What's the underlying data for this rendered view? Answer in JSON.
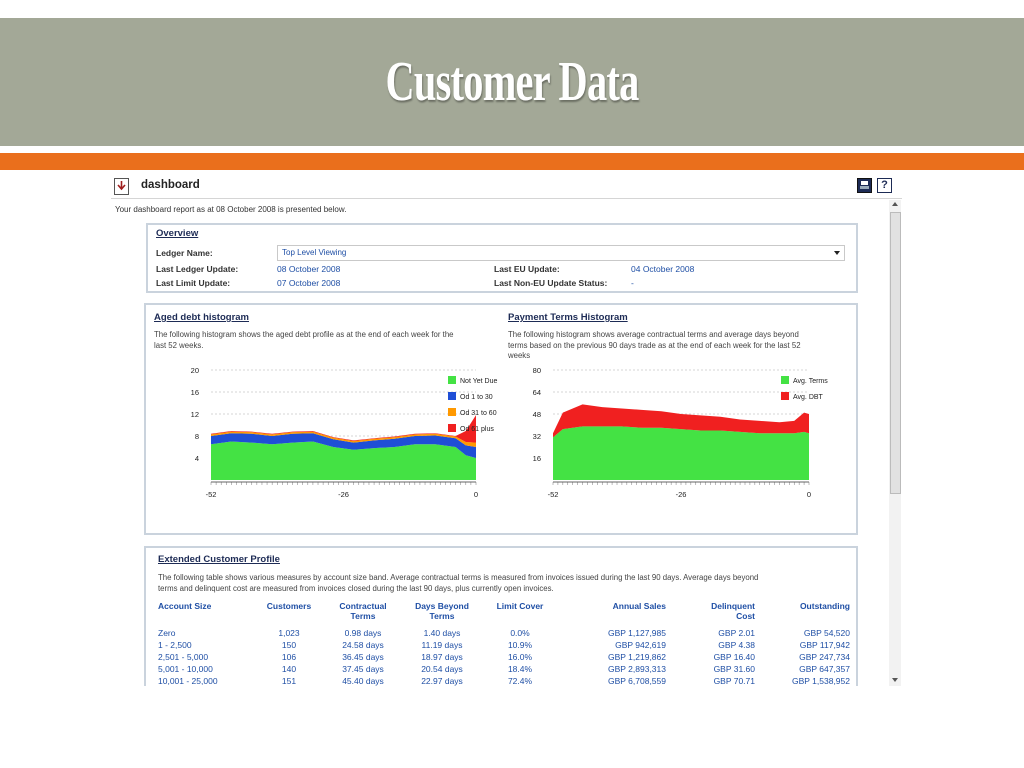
{
  "slide": {
    "title": "Customer Data"
  },
  "app": {
    "title": "dashboard",
    "subtitle": "Your dashboard report as at 08 October 2008 is presented below.",
    "icons": {
      "page": "dashboard-page-icon",
      "print": "print-icon",
      "help": "help-icon"
    }
  },
  "overview": {
    "heading": "Overview",
    "ledger_name_label": "Ledger Name:",
    "ledger_name_value": "Top Level Viewing",
    "last_ledger_update_label": "Last Ledger Update:",
    "last_ledger_update_value": "08 October 2008",
    "last_limit_update_label": "Last Limit Update:",
    "last_limit_update_value": "07 October 2008",
    "last_eu_update_label": "Last EU Update:",
    "last_eu_update_value": "04 October 2008",
    "last_non_eu_update_label": "Last Non-EU Update Status:",
    "last_non_eu_update_value": "-"
  },
  "aged_debt": {
    "heading": "Aged debt histogram",
    "desc1": "The following histogram shows the aged debt profile as at the end of each week for the",
    "desc2": "last 52 weeks."
  },
  "payment_terms": {
    "heading": "Payment Terms Histogram",
    "desc1": "The following histogram shows average contractual terms and average days beyond",
    "desc2": "terms based on the previous 90 days trade as at the end of each week for the last 52",
    "desc3": "weeks"
  },
  "chart_data": [
    {
      "type": "area",
      "stacked": true,
      "x": [
        -52,
        -48,
        -44,
        -40,
        -36,
        -32,
        -28,
        -24,
        -20,
        -16,
        -12,
        -8,
        -4,
        -2,
        0
      ],
      "series": [
        {
          "name": "Not Yet Due",
          "color": "#44e244",
          "values": [
            6.5,
            7.0,
            6.8,
            6.5,
            6.8,
            7.0,
            6.0,
            5.5,
            5.8,
            6.0,
            6.5,
            6.5,
            6.0,
            4.5,
            4.0
          ]
        },
        {
          "name": "Od 1 to 30",
          "color": "#1f4fd6",
          "values": [
            1.5,
            1.5,
            1.6,
            1.5,
            1.6,
            1.5,
            1.4,
            1.3,
            1.4,
            1.5,
            1.5,
            1.6,
            1.6,
            1.8,
            2.0
          ]
        },
        {
          "name": "Od 31 to 60",
          "color": "#ff9900",
          "values": [
            0.3,
            0.3,
            0.3,
            0.3,
            0.3,
            0.3,
            0.3,
            0.3,
            0.3,
            0.3,
            0.3,
            0.3,
            0.3,
            0.6,
            0.8
          ]
        },
        {
          "name": "Od 61 plus",
          "color": "#f02020",
          "values": [
            0.1,
            0.1,
            0.1,
            0.1,
            0.1,
            0.1,
            0.1,
            0.1,
            0.1,
            0.1,
            0.1,
            0.1,
            0.1,
            2.0,
            5.0
          ]
        }
      ],
      "yticks": [
        20,
        16,
        12,
        8,
        4
      ],
      "xticks": [
        -52,
        -26,
        0
      ],
      "ylim": [
        0,
        20
      ],
      "xlim": [
        -52,
        0
      ],
      "grid": true,
      "legend": "right"
    },
    {
      "type": "area",
      "stacked": true,
      "x": [
        -52,
        -50,
        -46,
        -42,
        -38,
        -34,
        -30,
        -26,
        -22,
        -18,
        -14,
        -10,
        -6,
        -3,
        -1,
        0
      ],
      "series": [
        {
          "name": "Avg. Terms",
          "color": "#44e244",
          "values": [
            31,
            37,
            39,
            39,
            39,
            38,
            38,
            37,
            36,
            36,
            35,
            34,
            34,
            34,
            35,
            34
          ]
        },
        {
          "name": "Avg. DBT",
          "color": "#f02020",
          "values": [
            3,
            12,
            16,
            14,
            13,
            13,
            12,
            11,
            11,
            10,
            9,
            9,
            8,
            9,
            14,
            14
          ]
        }
      ],
      "yticks": [
        80,
        64,
        48,
        32,
        16
      ],
      "xticks": [
        -52,
        -26,
        0
      ],
      "ylim": [
        0,
        80
      ],
      "xlim": [
        -52,
        0
      ],
      "grid": true,
      "legend": "right"
    }
  ],
  "ecp": {
    "heading": "Extended Customer Profile",
    "desc1": "The following table shows various measures by account size band. Average contractual terms is measured from invoices issued during the last 90 days. Average days beyond",
    "desc2": "terms and delinquent cost are measured from invoices closed during the last 90 days, plus currently open invoices.",
    "headers": [
      [
        "Account Size",
        ""
      ],
      [
        "Customers",
        ""
      ],
      [
        "Contractual",
        "Terms"
      ],
      [
        "Days Beyond",
        "Terms"
      ],
      [
        "Limit Cover",
        ""
      ],
      [
        "Annual Sales",
        ""
      ],
      [
        "Delinquent",
        "Cost"
      ],
      [
        "Outstanding",
        ""
      ]
    ],
    "rows": [
      [
        "Zero",
        "1,023",
        "0.98 days",
        "1.40 days",
        "0.0%",
        "GBP 1,127,985",
        "GBP 2.01",
        "GBP 54,520"
      ],
      [
        "1 - 2,500",
        "150",
        "24.58 days",
        "11.19 days",
        "10.9%",
        "GBP 942,619",
        "GBP 4.38",
        "GBP 117,942"
      ],
      [
        "2,501 - 5,000",
        "106",
        "36.45 days",
        "18.97 days",
        "16.0%",
        "GBP 1,219,862",
        "GBP 16.40",
        "GBP 247,734"
      ],
      [
        "5,001 - 10,000",
        "140",
        "37.45 days",
        "20.54 days",
        "18.4%",
        "GBP 2,893,313",
        "GBP 31.60",
        "GBP 647,357"
      ],
      [
        "10,001 - 25,000",
        "151",
        "45.40 days",
        "22.97 days",
        "72.4%",
        "GBP 6,708,559",
        "GBP 70.71",
        "GBP 1,538,952"
      ]
    ]
  }
}
